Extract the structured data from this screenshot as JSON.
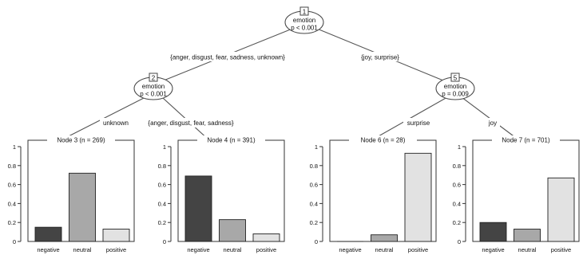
{
  "tree": {
    "inner_nodes": [
      {
        "id": "1",
        "variable": "emotion",
        "pvalue": "p < 0.001"
      },
      {
        "id": "2",
        "variable": "emotion",
        "pvalue": "p < 0.001"
      },
      {
        "id": "5",
        "variable": "emotion",
        "pvalue": "p = 0.009"
      }
    ],
    "edge_labels": [
      "{anger, disgust, fear, sadness, unknown}",
      "{joy, surprise}",
      "unknown",
      "{anger, disgust, fear, sadness}",
      "surprise",
      "joy"
    ]
  },
  "chart_data": [
    {
      "type": "bar",
      "title": "Node 3 (n = 269)",
      "categories": [
        "negative",
        "neutral",
        "positive"
      ],
      "values": [
        0.15,
        0.72,
        0.13
      ],
      "ylim": [
        0,
        1
      ],
      "yticks": [
        "0",
        "0.2",
        "0.4",
        "0.6",
        "0.8",
        "1"
      ],
      "colors": [
        "#444444",
        "#a8a8a8",
        "#e2e2e2"
      ]
    },
    {
      "type": "bar",
      "title": "Node 4 (n = 391)",
      "categories": [
        "negative",
        "neutral",
        "positive"
      ],
      "values": [
        0.69,
        0.23,
        0.08
      ],
      "ylim": [
        0,
        1
      ],
      "yticks": [
        "0",
        "0.2",
        "0.4",
        "0.6",
        "0.8",
        "1"
      ],
      "colors": [
        "#444444",
        "#a8a8a8",
        "#e2e2e2"
      ]
    },
    {
      "type": "bar",
      "title": "Node 6 (n = 28)",
      "categories": [
        "negative",
        "neutral",
        "positive"
      ],
      "values": [
        0.0,
        0.07,
        0.93
      ],
      "ylim": [
        0,
        1
      ],
      "yticks": [
        "0",
        "0.2",
        "0.4",
        "0.6",
        "0.8",
        "1"
      ],
      "colors": [
        "#444444",
        "#a8a8a8",
        "#e2e2e2"
      ]
    },
    {
      "type": "bar",
      "title": "Node 7 (n = 701)",
      "categories": [
        "negative",
        "neutral",
        "positive"
      ],
      "values": [
        0.2,
        0.13,
        0.67
      ],
      "ylim": [
        0,
        1
      ],
      "yticks": [
        "0",
        "0.2",
        "0.4",
        "0.6",
        "0.8",
        "1"
      ],
      "colors": [
        "#444444",
        "#a8a8a8",
        "#e2e2e2"
      ]
    }
  ]
}
